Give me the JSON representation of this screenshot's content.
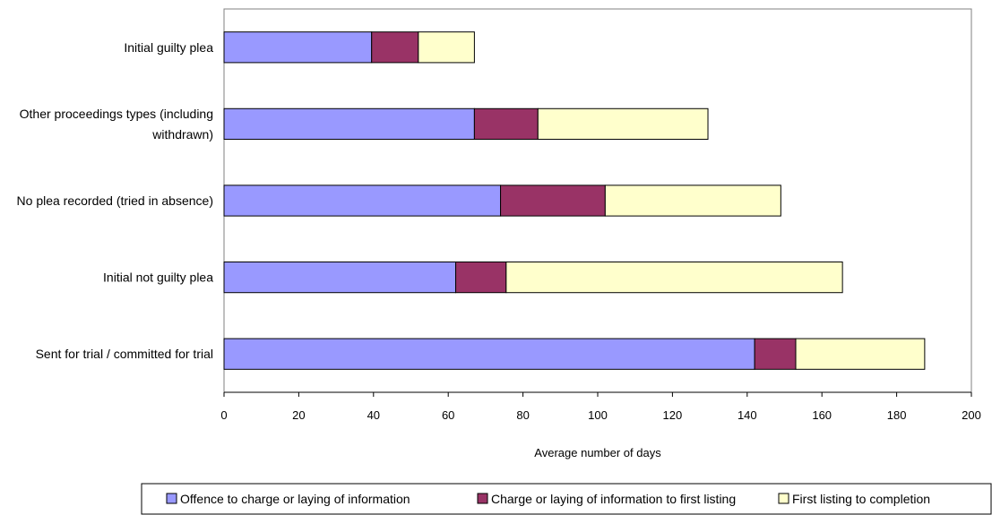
{
  "chart_data": {
    "type": "bar",
    "orientation": "horizontal",
    "stacked": true,
    "categories": [
      "Initial guilty plea",
      "Other proceedings types (including withdrawn)",
      "No plea recorded (tried in absence)",
      "Initial not guilty plea",
      "Sent for trial / committed for trial"
    ],
    "category_lines": [
      [
        "Initial guilty plea"
      ],
      [
        "Other proceedings types (including",
        "withdrawn)"
      ],
      [
        "No plea recorded (tried in absence)"
      ],
      [
        "Initial not guilty plea"
      ],
      [
        "Sent for trial / committed for trial"
      ]
    ],
    "series": [
      {
        "name": "Offence to charge or laying of information",
        "color": "#9999ff",
        "values": [
          39.5,
          67,
          74,
          62,
          142
        ]
      },
      {
        "name": "Charge or laying of information to first listing",
        "color": "#993366",
        "values": [
          12.5,
          17,
          28,
          13.5,
          11
        ]
      },
      {
        "name": "First listing to completion",
        "color": "#ffffcc",
        "values": [
          15,
          45.5,
          47,
          90,
          34.5
        ]
      }
    ],
    "xlabel": "Average number of days",
    "ylabel": "",
    "xlim": [
      0,
      200
    ],
    "xticks": [
      0,
      20,
      40,
      60,
      80,
      100,
      120,
      140,
      160,
      180,
      200
    ],
    "grid": false,
    "legend_position": "bottom"
  }
}
